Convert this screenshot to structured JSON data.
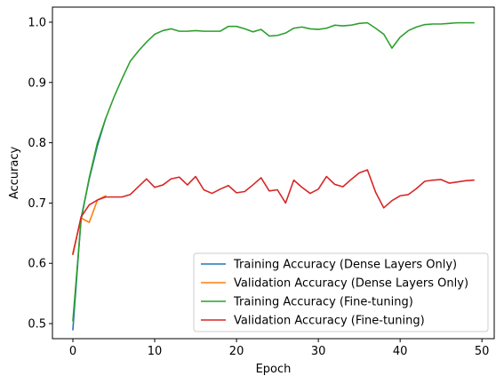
{
  "chart_data": {
    "type": "line",
    "title": "",
    "xlabel": "Epoch",
    "ylabel": "Accuracy",
    "xlim": [
      -2.5,
      51.5
    ],
    "ylim": [
      0.475,
      1.025
    ],
    "xticks": [
      0,
      10,
      20,
      30,
      40,
      50
    ],
    "yticks": [
      0.5,
      0.6,
      0.7,
      0.8,
      0.9,
      1.0
    ],
    "xtick_labels": [
      "0",
      "10",
      "20",
      "30",
      "40",
      "50"
    ],
    "ytick_labels": [
      "0.5",
      "0.6",
      "0.7",
      "0.8",
      "0.9",
      "1.0"
    ],
    "grid": false,
    "legend_position": "lower-right",
    "series": [
      {
        "name": "Training Accuracy (Dense Layers Only)",
        "color": "#1f77b4",
        "x": [
          0,
          1,
          2,
          3,
          4
        ],
        "values": [
          0.49,
          0.675,
          0.74,
          0.795,
          0.84
        ]
      },
      {
        "name": "Validation Accuracy (Dense Layers Only)",
        "color": "#ff7f0e",
        "x": [
          0,
          1,
          2,
          3,
          4
        ],
        "values": [
          0.617,
          0.675,
          0.668,
          0.705,
          0.712
        ]
      },
      {
        "name": "Training Accuracy (Fine-tuning)",
        "color": "#2ca02c",
        "x": [
          0,
          1,
          2,
          3,
          4,
          5,
          6,
          7,
          8,
          9,
          10,
          11,
          12,
          13,
          14,
          15,
          16,
          17,
          18,
          19,
          20,
          21,
          22,
          23,
          24,
          25,
          26,
          27,
          28,
          29,
          30,
          31,
          32,
          33,
          34,
          35,
          36,
          37,
          38,
          39,
          40,
          41,
          42,
          43,
          44,
          45,
          46,
          47,
          48,
          49
        ],
        "values": [
          0.505,
          0.672,
          0.742,
          0.8,
          0.84,
          0.875,
          0.906,
          0.935,
          0.952,
          0.967,
          0.98,
          0.986,
          0.989,
          0.985,
          0.985,
          0.986,
          0.985,
          0.985,
          0.985,
          0.993,
          0.993,
          0.989,
          0.984,
          0.988,
          0.977,
          0.978,
          0.982,
          0.99,
          0.992,
          0.989,
          0.988,
          0.99,
          0.995,
          0.994,
          0.995,
          0.998,
          0.999,
          0.99,
          0.98,
          0.957,
          0.975,
          0.986,
          0.992,
          0.996,
          0.997,
          0.997,
          0.998,
          0.999,
          0.999,
          0.999
        ]
      },
      {
        "name": "Validation Accuracy (Fine-tuning)",
        "color": "#d62728",
        "x": [
          0,
          1,
          2,
          3,
          4,
          5,
          6,
          7,
          8,
          9,
          10,
          11,
          12,
          13,
          14,
          15,
          16,
          17,
          18,
          19,
          20,
          21,
          22,
          23,
          24,
          25,
          26,
          27,
          28,
          29,
          30,
          31,
          32,
          33,
          34,
          35,
          36,
          37,
          38,
          39,
          40,
          41,
          42,
          43,
          44,
          45,
          46,
          47,
          48,
          49
        ],
        "values": [
          0.615,
          0.677,
          0.697,
          0.705,
          0.71,
          0.71,
          0.71,
          0.714,
          0.727,
          0.74,
          0.726,
          0.73,
          0.74,
          0.743,
          0.73,
          0.744,
          0.722,
          0.716,
          0.723,
          0.729,
          0.717,
          0.719,
          0.73,
          0.742,
          0.72,
          0.722,
          0.7,
          0.738,
          0.726,
          0.716,
          0.723,
          0.744,
          0.731,
          0.727,
          0.739,
          0.75,
          0.755,
          0.718,
          0.692,
          0.704,
          0.712,
          0.714,
          0.724,
          0.736,
          0.738,
          0.739,
          0.733,
          0.735,
          0.737,
          0.738
        ]
      }
    ]
  }
}
